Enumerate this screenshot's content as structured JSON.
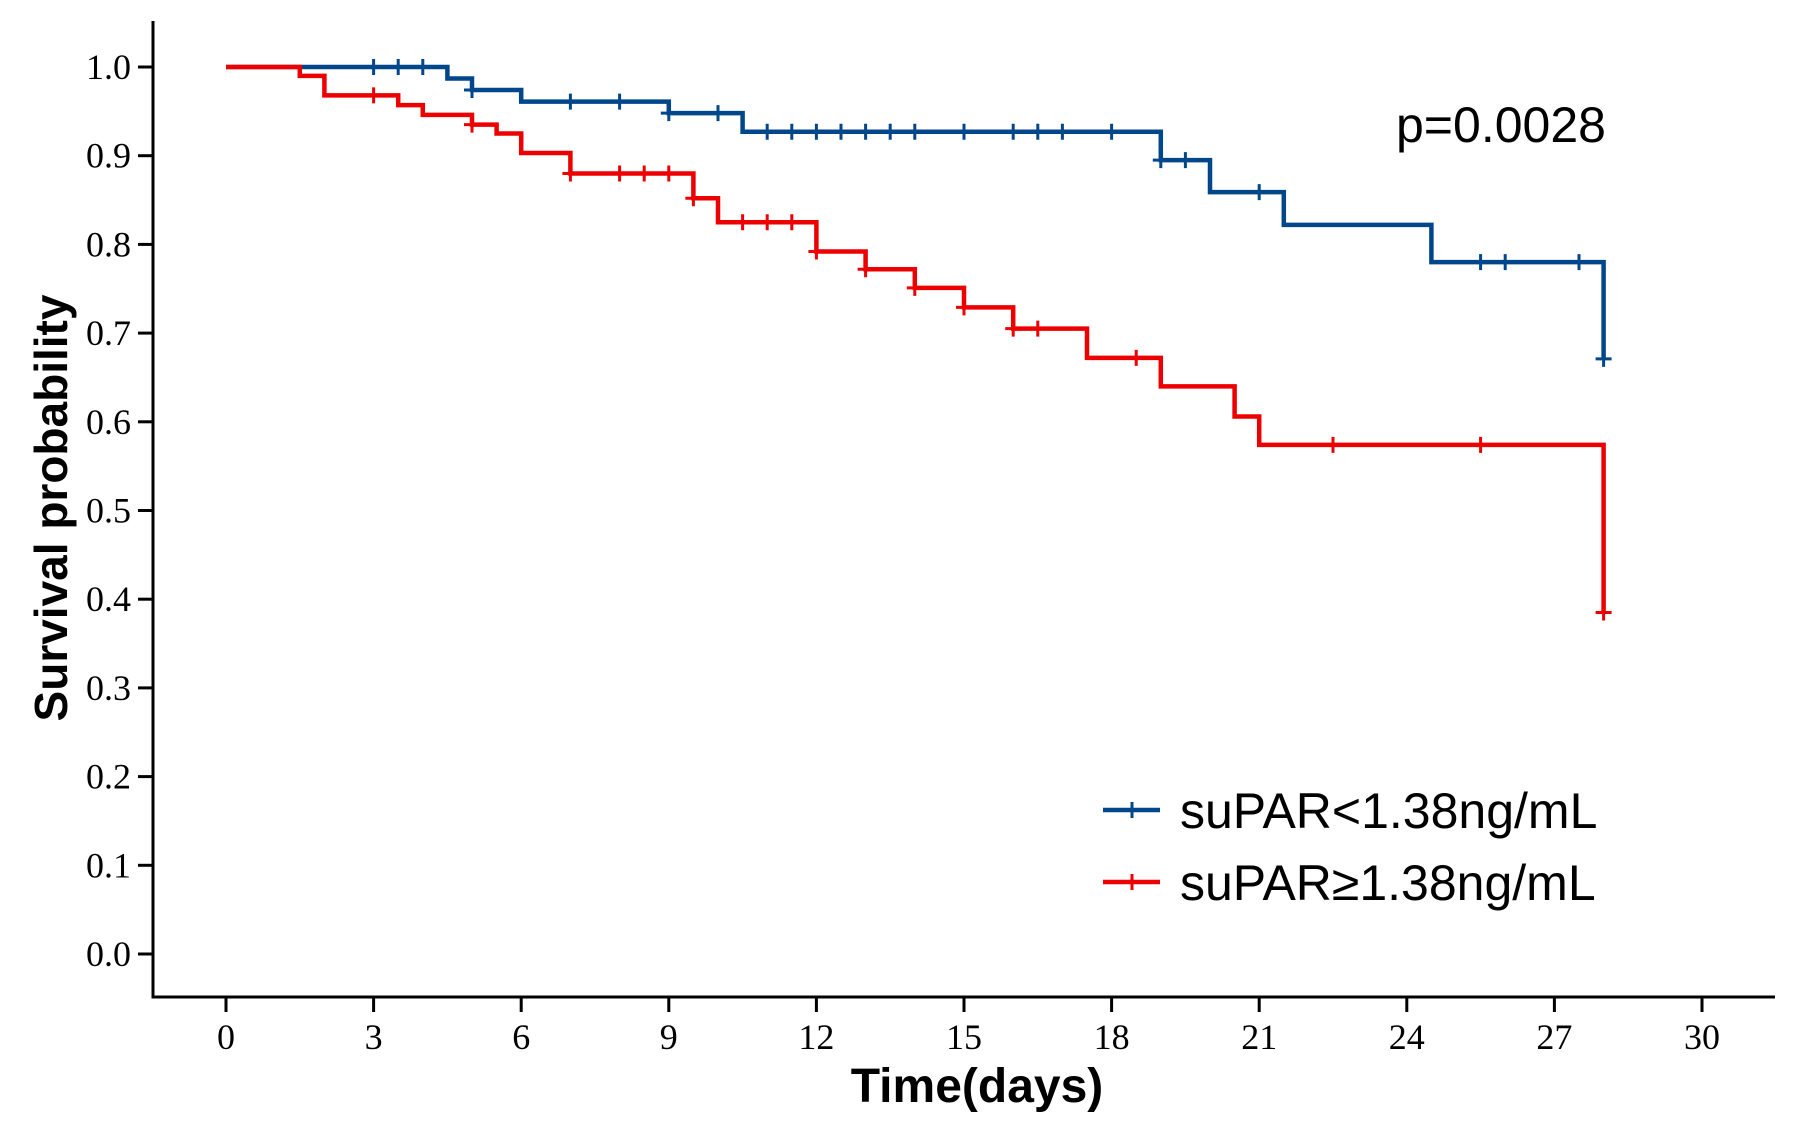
{
  "chart_data": {
    "type": "line",
    "step": true,
    "xlabel": "Time(days)",
    "ylabel": "Survival probability",
    "xlim": [
      0,
      30
    ],
    "ylim": [
      0,
      1
    ],
    "x_ticks": [
      0,
      3,
      6,
      9,
      12,
      15,
      18,
      21,
      24,
      27,
      30
    ],
    "x_tick_labels": [
      "0",
      "3",
      "6",
      "9",
      "12",
      "15",
      "18",
      "21",
      "24",
      "27",
      "30"
    ],
    "y_ticks": [
      0,
      0.1,
      0.2,
      0.3,
      0.4,
      0.5,
      0.6,
      0.7,
      0.8,
      0.9,
      1.0
    ],
    "y_tick_labels": [
      "0.0",
      "0.1",
      "0.2",
      "0.3",
      "0.4",
      "0.5",
      "0.6",
      "0.7",
      "0.8",
      "0.9",
      "1.0"
    ],
    "annotation": "p=0.0028",
    "grid": false,
    "legend_position": "bottom-right",
    "series": [
      {
        "name": "suPAR<1.38ng/mL",
        "color": "#00468B",
        "x": [
          0,
          4.5,
          5,
          6,
          9,
          10.5,
          19,
          20,
          21.5,
          24.5,
          28
        ],
        "y": [
          1.0,
          0.987,
          0.974,
          0.961,
          0.948,
          0.927,
          0.895,
          0.859,
          0.822,
          0.78,
          0.671
        ],
        "censored_x": [
          3,
          3.5,
          4,
          5,
          7,
          8,
          9,
          10,
          11,
          11.5,
          12,
          12.5,
          13,
          13.5,
          14,
          15,
          16,
          16.5,
          17,
          18,
          19,
          19.5,
          21,
          25.5,
          26,
          27.5,
          28
        ]
      },
      {
        "name": "suPAR≥1.38ng/mL",
        "color": "#ED0000",
        "x": [
          0,
          1.5,
          2,
          3.5,
          4,
          5,
          5.5,
          6,
          7,
          9.5,
          10,
          12,
          13,
          14,
          15,
          16,
          17.5,
          19,
          20.5,
          21,
          28
        ],
        "y": [
          1.0,
          0.99,
          0.968,
          0.957,
          0.946,
          0.935,
          0.925,
          0.903,
          0.88,
          0.852,
          0.825,
          0.792,
          0.772,
          0.751,
          0.729,
          0.705,
          0.672,
          0.64,
          0.606,
          0.574,
          0.385
        ],
        "censored_x": [
          3,
          5,
          7,
          8,
          8.5,
          9,
          9.5,
          10.5,
          11,
          11.5,
          12,
          13,
          14,
          15,
          16,
          16.5,
          18.5,
          22.5,
          25.5,
          28
        ]
      }
    ]
  }
}
